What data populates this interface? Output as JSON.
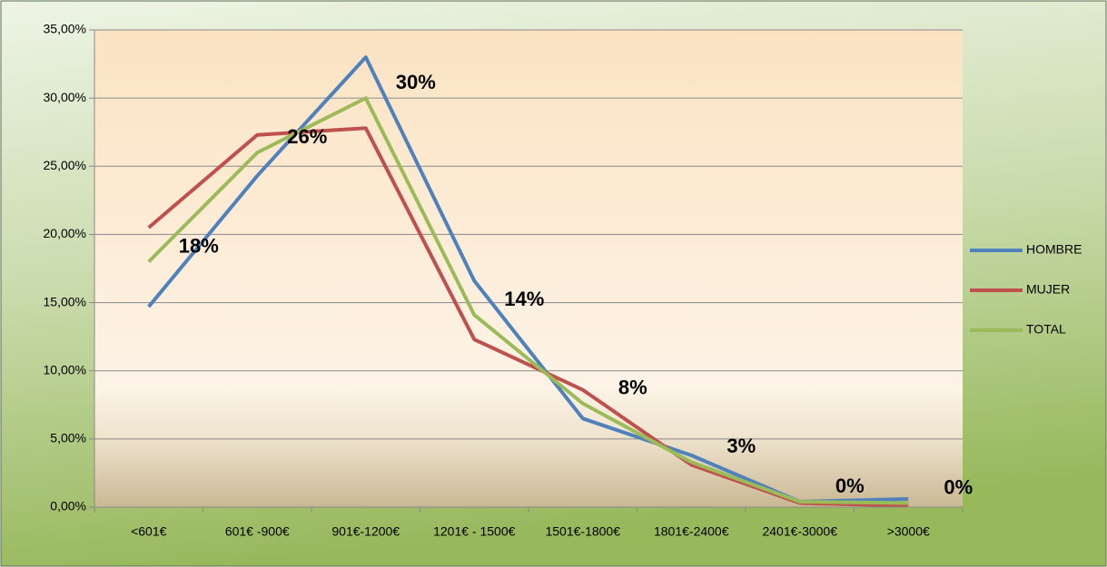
{
  "chart_data": {
    "type": "line",
    "categories": [
      "<601€",
      "601€ -900€",
      "901€-1200€",
      "1201€ - 1500€",
      "1501€-1800€",
      "1801€-2400€",
      "2401€-3000€",
      ">3000€"
    ],
    "series": [
      {
        "name": "HOMBRE",
        "color": "#4f81bd",
        "values": [
          14.7,
          24.3,
          33.0,
          16.6,
          6.5,
          3.8,
          0.4,
          0.6
        ]
      },
      {
        "name": "MUJER",
        "color": "#c0504d",
        "values": [
          20.5,
          27.3,
          27.8,
          12.3,
          8.6,
          3.1,
          0.3,
          0.1
        ]
      },
      {
        "name": "TOTAL",
        "color": "#9bbb59",
        "values": [
          18.0,
          26.0,
          30.0,
          14.1,
          7.6,
          3.3,
          0.4,
          0.3
        ],
        "value_labels": [
          "18%",
          "26%",
          "30%",
          "14%",
          "8%",
          "3%",
          "0%",
          "0%"
        ]
      }
    ],
    "ylim": [
      0,
      35
    ],
    "yticks": [
      {
        "value": 0,
        "label": "0,00%"
      },
      {
        "value": 5,
        "label": "5,00%"
      },
      {
        "value": 10,
        "label": "10,00%"
      },
      {
        "value": 15,
        "label": "15,00%"
      },
      {
        "value": 20,
        "label": "20,00%"
      },
      {
        "value": 25,
        "label": "25,00%"
      },
      {
        "value": 30,
        "label": "30,00%"
      },
      {
        "value": 35,
        "label": "35,00%"
      }
    ],
    "grid": true,
    "legend": "right"
  }
}
